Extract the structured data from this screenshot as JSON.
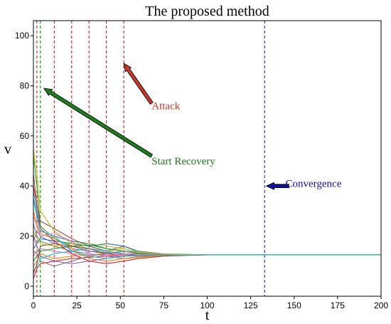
{
  "chart_data": {
    "type": "line",
    "title": "The proposed method",
    "xlabel": "t",
    "ylabel": "v",
    "xlim": [
      0,
      200
    ],
    "ylim": [
      -4,
      106
    ],
    "xticks": [
      0,
      25,
      50,
      75,
      100,
      125,
      150,
      175,
      200
    ],
    "xtick_labels": [
      "0",
      "25",
      "50",
      "75",
      "100",
      "125",
      "150",
      "175",
      "200"
    ],
    "yticks": [
      0,
      20,
      40,
      60,
      80,
      100
    ],
    "ytick_labels": [
      "0",
      "20",
      "40",
      "60",
      "80",
      "100"
    ],
    "grid": false,
    "legend": "none",
    "attack_lines_t": [
      2,
      12,
      22,
      32,
      42,
      52
    ],
    "recovery_line_t": 4,
    "convergence_line_t": 133,
    "converged_value": 12.5,
    "series": [
      {
        "color": "#1f77b4",
        "values": [
          [
            0,
            35
          ],
          [
            2,
            28
          ],
          [
            4,
            22
          ],
          [
            12,
            20
          ],
          [
            22,
            18
          ],
          [
            32,
            17
          ],
          [
            42,
            15
          ],
          [
            52,
            14
          ],
          [
            60,
            13.5
          ],
          [
            75,
            12.8
          ],
          [
            100,
            12.5
          ],
          [
            200,
            12.5
          ]
        ]
      },
      {
        "color": "#ff7f0e",
        "values": [
          [
            0,
            8
          ],
          [
            2,
            10
          ],
          [
            4,
            13
          ],
          [
            12,
            11
          ],
          [
            22,
            12
          ],
          [
            32,
            12.5
          ],
          [
            42,
            13
          ],
          [
            52,
            12
          ],
          [
            60,
            12.5
          ],
          [
            75,
            12.5
          ],
          [
            100,
            12.5
          ],
          [
            200,
            12.5
          ]
        ]
      },
      {
        "color": "#2ca02c",
        "values": [
          [
            0,
            52
          ],
          [
            2,
            40
          ],
          [
            4,
            24
          ],
          [
            12,
            19
          ],
          [
            22,
            16
          ],
          [
            32,
            14
          ],
          [
            42,
            13
          ],
          [
            52,
            14
          ],
          [
            60,
            13
          ],
          [
            75,
            12.6
          ],
          [
            100,
            12.5
          ],
          [
            200,
            12.5
          ]
        ]
      },
      {
        "color": "#d62728",
        "values": [
          [
            0,
            3
          ],
          [
            2,
            7
          ],
          [
            4,
            9
          ],
          [
            12,
            10
          ],
          [
            22,
            11
          ],
          [
            32,
            11.5
          ],
          [
            42,
            12
          ],
          [
            52,
            12
          ],
          [
            60,
            12.2
          ],
          [
            75,
            12.4
          ],
          [
            100,
            12.5
          ],
          [
            200,
            12.5
          ]
        ]
      },
      {
        "color": "#9467bd",
        "values": [
          [
            0,
            18
          ],
          [
            2,
            22
          ],
          [
            4,
            20
          ],
          [
            12,
            17
          ],
          [
            22,
            15
          ],
          [
            32,
            14
          ],
          [
            42,
            13.5
          ],
          [
            52,
            13
          ],
          [
            60,
            12.8
          ],
          [
            75,
            12.6
          ],
          [
            100,
            12.5
          ],
          [
            200,
            12.5
          ]
        ]
      },
      {
        "color": "#8c564b",
        "values": [
          [
            0,
            45
          ],
          [
            2,
            32
          ],
          [
            4,
            26
          ],
          [
            12,
            23
          ],
          [
            22,
            19
          ],
          [
            32,
            16
          ],
          [
            42,
            14
          ],
          [
            52,
            16
          ],
          [
            60,
            14
          ],
          [
            75,
            12.8
          ],
          [
            100,
            12.5
          ],
          [
            200,
            12.5
          ]
        ]
      },
      {
        "color": "#e377c2",
        "values": [
          [
            0,
            12
          ],
          [
            2,
            14
          ],
          [
            4,
            15
          ],
          [
            12,
            14
          ],
          [
            22,
            13
          ],
          [
            32,
            12.5
          ],
          [
            42,
            12.5
          ],
          [
            52,
            12
          ],
          [
            60,
            12.3
          ],
          [
            75,
            12.5
          ],
          [
            100,
            12.5
          ],
          [
            200,
            12.5
          ]
        ]
      },
      {
        "color": "#7f7f7f",
        "values": [
          [
            0,
            25
          ],
          [
            2,
            20
          ],
          [
            4,
            18
          ],
          [
            12,
            16
          ],
          [
            22,
            14
          ],
          [
            32,
            13
          ],
          [
            42,
            12
          ],
          [
            52,
            11
          ],
          [
            60,
            11.8
          ],
          [
            75,
            12.3
          ],
          [
            100,
            12.5
          ],
          [
            200,
            12.5
          ]
        ]
      },
      {
        "color": "#bcbd22",
        "values": [
          [
            0,
            55
          ],
          [
            2,
            45
          ],
          [
            4,
            30
          ],
          [
            12,
            22
          ],
          [
            22,
            17
          ],
          [
            32,
            15
          ],
          [
            42,
            14
          ],
          [
            52,
            15
          ],
          [
            60,
            13.5
          ],
          [
            75,
            12.7
          ],
          [
            100,
            12.5
          ],
          [
            200,
            12.5
          ]
        ]
      },
      {
        "color": "#17becf",
        "values": [
          [
            0,
            6
          ],
          [
            2,
            8
          ],
          [
            4,
            11
          ],
          [
            12,
            13
          ],
          [
            22,
            14
          ],
          [
            32,
            15
          ],
          [
            42,
            14
          ],
          [
            52,
            13
          ],
          [
            60,
            12.8
          ],
          [
            75,
            12.5
          ],
          [
            100,
            12.5
          ],
          [
            200,
            12.5
          ]
        ]
      },
      {
        "color": "#1f77b4",
        "values": [
          [
            0,
            15
          ],
          [
            2,
            17
          ],
          [
            4,
            19
          ],
          [
            12,
            18
          ],
          [
            22,
            17
          ],
          [
            32,
            16
          ],
          [
            42,
            17
          ],
          [
            52,
            16
          ],
          [
            60,
            14
          ],
          [
            75,
            12.9
          ],
          [
            100,
            12.5
          ],
          [
            200,
            12.5
          ]
        ]
      },
      {
        "color": "#ff7f0e",
        "values": [
          [
            0,
            30
          ],
          [
            2,
            25
          ],
          [
            4,
            21
          ],
          [
            12,
            19
          ],
          [
            22,
            15
          ],
          [
            32,
            11
          ],
          [
            42,
            10
          ],
          [
            52,
            11
          ],
          [
            60,
            11.5
          ],
          [
            75,
            12.2
          ],
          [
            100,
            12.5
          ],
          [
            200,
            12.5
          ]
        ]
      },
      {
        "color": "#2ca02c",
        "values": [
          [
            0,
            10
          ],
          [
            2,
            12
          ],
          [
            4,
            14
          ],
          [
            12,
            15
          ],
          [
            22,
            16
          ],
          [
            32,
            16.5
          ],
          [
            42,
            15
          ],
          [
            52,
            14
          ],
          [
            60,
            13.2
          ],
          [
            75,
            12.6
          ],
          [
            100,
            12.5
          ],
          [
            200,
            12.5
          ]
        ]
      },
      {
        "color": "#d62728",
        "values": [
          [
            0,
            40
          ],
          [
            2,
            33
          ],
          [
            4,
            23
          ],
          [
            12,
            18
          ],
          [
            22,
            13
          ],
          [
            32,
            10
          ],
          [
            42,
            9
          ],
          [
            52,
            10
          ],
          [
            60,
            11
          ],
          [
            75,
            12
          ],
          [
            100,
            12.5
          ],
          [
            200,
            12.5
          ]
        ]
      },
      {
        "color": "#9467bd",
        "values": [
          [
            0,
            20
          ],
          [
            2,
            16
          ],
          [
            4,
            12
          ],
          [
            12,
            10
          ],
          [
            22,
            9
          ],
          [
            32,
            10
          ],
          [
            42,
            11
          ],
          [
            52,
            12
          ],
          [
            60,
            12.2
          ],
          [
            75,
            12.4
          ],
          [
            100,
            12.5
          ],
          [
            200,
            12.5
          ]
        ]
      },
      {
        "color": "#8c564b",
        "values": [
          [
            0,
            5
          ],
          [
            2,
            9
          ],
          [
            4,
            16
          ],
          [
            12,
            17
          ],
          [
            22,
            16
          ],
          [
            32,
            15
          ],
          [
            42,
            13
          ],
          [
            52,
            12.5
          ],
          [
            60,
            12.5
          ],
          [
            75,
            12.5
          ],
          [
            100,
            12.5
          ],
          [
            200,
            12.5
          ]
        ]
      },
      {
        "color": "#e377c2",
        "values": [
          [
            0,
            28
          ],
          [
            2,
            24
          ],
          [
            4,
            20
          ],
          [
            12,
            21
          ],
          [
            22,
            18
          ],
          [
            32,
            13
          ],
          [
            42,
            12
          ],
          [
            52,
            13
          ],
          [
            60,
            12.6
          ],
          [
            75,
            12.5
          ],
          [
            100,
            12.5
          ],
          [
            200,
            12.5
          ]
        ]
      },
      {
        "color": "#7f7f7f",
        "values": [
          [
            0,
            14
          ],
          [
            2,
            13
          ],
          [
            4,
            10
          ],
          [
            12,
            8
          ],
          [
            22,
            10
          ],
          [
            32,
            12
          ],
          [
            42,
            13
          ],
          [
            52,
            14
          ],
          [
            60,
            13
          ],
          [
            75,
            12.6
          ],
          [
            100,
            12.5
          ],
          [
            200,
            12.5
          ]
        ]
      },
      {
        "color": "#bcbd22",
        "values": [
          [
            0,
            22
          ],
          [
            2,
            19
          ],
          [
            4,
            17
          ],
          [
            12,
            16
          ],
          [
            22,
            17
          ],
          [
            32,
            17
          ],
          [
            42,
            16
          ],
          [
            52,
            15
          ],
          [
            60,
            13.8
          ],
          [
            75,
            12.8
          ],
          [
            100,
            12.5
          ],
          [
            200,
            12.5
          ]
        ]
      },
      {
        "color": "#17becf",
        "values": [
          [
            0,
            38
          ],
          [
            2,
            30
          ],
          [
            4,
            22
          ],
          [
            12,
            20
          ],
          [
            22,
            14
          ],
          [
            32,
            12
          ],
          [
            42,
            11
          ],
          [
            52,
            12
          ],
          [
            60,
            12.2
          ],
          [
            75,
            12.4
          ],
          [
            100,
            12.5
          ],
          [
            200,
            12.5
          ]
        ]
      }
    ],
    "annotations": [
      {
        "id": "attack",
        "text": "Attack",
        "color": "#c0392b",
        "text_at": [
          68,
          72
        ],
        "arrow_from": [
          68,
          73
        ],
        "arrow_to": [
          52,
          89
        ]
      },
      {
        "id": "recovery",
        "text": "Start Recovery",
        "color": "#1e7b1e",
        "text_at": [
          68,
          50
        ],
        "arrow_from": [
          68,
          52
        ],
        "arrow_to": [
          6,
          79
        ]
      },
      {
        "id": "convergence",
        "text": "Convergence",
        "color": "#1010a0",
        "text_at": [
          145,
          41
        ],
        "arrow_from": [
          147,
          40
        ],
        "arrow_to": [
          134,
          40
        ]
      }
    ]
  }
}
